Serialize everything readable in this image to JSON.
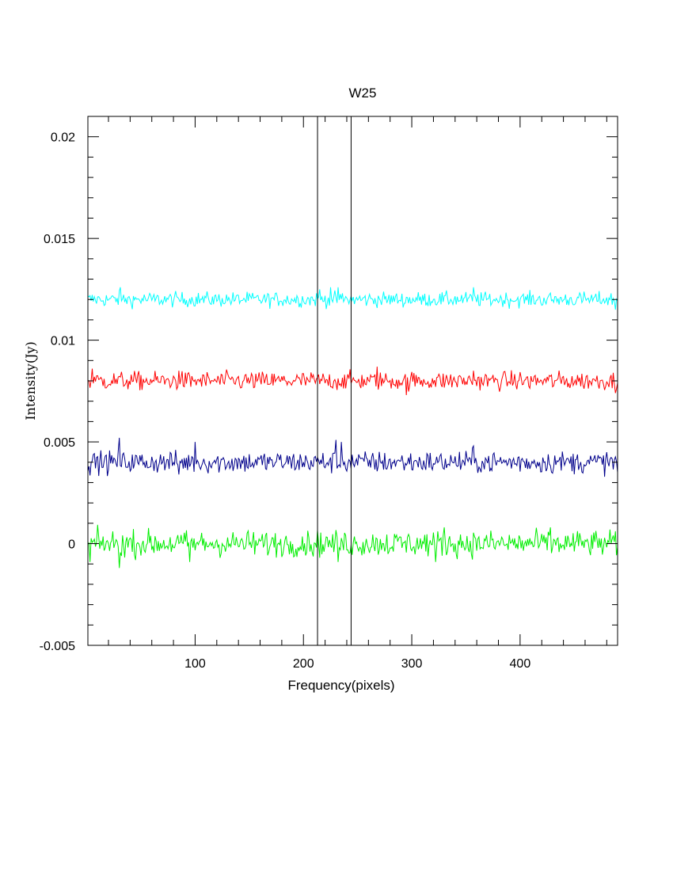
{
  "chart_data": {
    "type": "line",
    "title": "W25",
    "xlabel": "Frequency(pixels)",
    "ylabel": "Intensity(Jy)",
    "xlim": [
      1,
      490
    ],
    "ylim": [
      -0.005,
      0.021
    ],
    "x_ticks": [
      100,
      200,
      300,
      400
    ],
    "x_tick_labels": [
      "100",
      "200",
      "300",
      "400"
    ],
    "y_ticks": [
      -0.005,
      0,
      0.005,
      0.01,
      0.015,
      0.02
    ],
    "y_tick_labels": [
      "-0.005",
      "0",
      "0.005",
      "0.01",
      "0.015",
      "0.02"
    ],
    "grid": false,
    "vertical_markers": [
      213,
      244
    ],
    "series": [
      {
        "color": "#00ffff",
        "offset": 0.012,
        "noise": 0.0002,
        "features": [
          {
            "x": 31,
            "value": 0.0126
          },
          {
            "x": 215,
            "value": 0.0125
          },
          {
            "x": 225,
            "value": 0.0126
          },
          {
            "x": 232,
            "value": 0.0126
          },
          {
            "x": 357,
            "value": 0.0126
          },
          {
            "x": 488,
            "value": 0.0115
          }
        ]
      },
      {
        "color": "#ff0000",
        "offset": 0.008,
        "noise": 0.00025,
        "features": [
          {
            "x": 5,
            "value": 0.0086
          },
          {
            "x": 85,
            "value": 0.0085
          },
          {
            "x": 268,
            "value": 0.0087
          },
          {
            "x": 295,
            "value": 0.0073
          },
          {
            "x": 357,
            "value": 0.0085
          },
          {
            "x": 488,
            "value": 0.0074
          }
        ]
      },
      {
        "color": "#00008b",
        "offset": 0.004,
        "noise": 0.0003,
        "features": [
          {
            "x": 30,
            "value": 0.0052
          },
          {
            "x": 85,
            "value": 0.0034
          },
          {
            "x": 100,
            "value": 0.005
          },
          {
            "x": 230,
            "value": 0.0051
          },
          {
            "x": 235,
            "value": 0.005
          },
          {
            "x": 357,
            "value": 0.0048
          },
          {
            "x": 490,
            "value": 0.0035
          }
        ]
      },
      {
        "color": "#00ee00",
        "offset": 0.0,
        "noise": 0.00035,
        "features": [
          {
            "x": 3,
            "value": -0.0009
          },
          {
            "x": 30,
            "value": -0.0012
          },
          {
            "x": 95,
            "value": -0.0009
          },
          {
            "x": 232,
            "value": -0.0009
          },
          {
            "x": 322,
            "value": -0.0009
          },
          {
            "x": 330,
            "value": 0.0008
          },
          {
            "x": 428,
            "value": 0.0008
          }
        ]
      }
    ]
  }
}
